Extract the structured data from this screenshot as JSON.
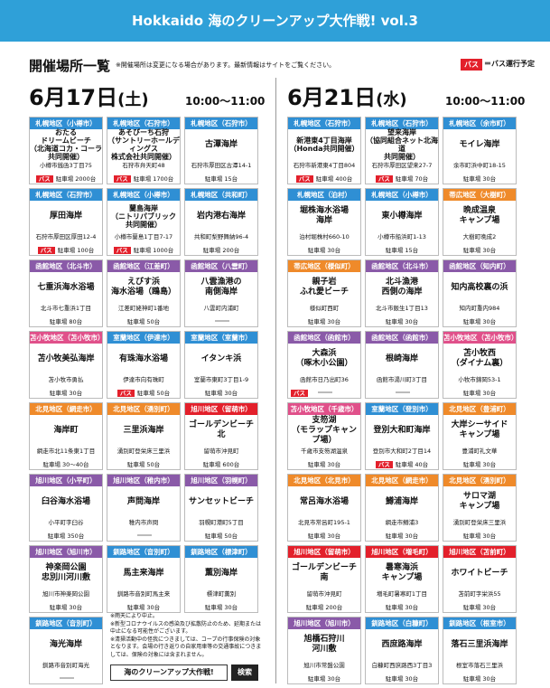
{
  "title": "Hokkaido 海のクリーンアップ大作戦! vol.3",
  "section_title": "開催場所一覧",
  "note": "※開催場所は変更になる場合があります。最新情報はサイトをご覧ください。",
  "bus_badge": "バス",
  "bus_legend": "＝バス運行予定",
  "dates": [
    {
      "date": "6月17日",
      "weekday": "(土)",
      "time": "10:00〜11:00"
    },
    {
      "date": "6月21日",
      "weekday": "(水)",
      "time": "10:00〜11:00"
    }
  ],
  "colors": {
    "blue": "#2f8fd4",
    "purple": "#8a5aa8",
    "pink": "#e0508a",
    "orange": "#ef8a2a",
    "red": "#e3202b",
    "banner": "#2fa0d8"
  },
  "cards_left": [
    {
      "region": "札幌地区（小樽市）",
      "color": "#2f8fd4",
      "name": "おたる\nドリームビーチ\n（北海道コカ・コーラ共同開催）",
      "address": "小樽市銭函3丁目75",
      "parking": "駐車場 2000台",
      "bus": true,
      "small": true
    },
    {
      "region": "札幌地区（石狩市）",
      "color": "#2f8fd4",
      "name": "あそびーち石狩\n（サントリーホールディングス\n株式会社共同開催）",
      "address": "石狩市弁天町48",
      "parking": "駐車場 1700台",
      "bus": true,
      "small": true
    },
    {
      "region": "札幌地区（石狩市）",
      "color": "#2f8fd4",
      "name": "古潭海岸",
      "address": "石狩市厚田区古潭14-1",
      "parking": "駐車場 15台",
      "bus": false
    },
    {
      "region": "札幌地区（石狩市）",
      "color": "#2f8fd4",
      "name": "厚田海岸",
      "address": "石狩市厚田区厚田12-4",
      "parking": "駐車場 100台",
      "bus": true
    },
    {
      "region": "札幌地区（小樽市）",
      "color": "#2f8fd4",
      "name": "蘭島海岸\n（ニトリパブリック\n共同開催）",
      "address": "小樽市蘭島1丁目7-17",
      "parking": "駐車場 1000台",
      "bus": true,
      "small": true
    },
    {
      "region": "札幌地区（共和町）",
      "color": "#2f8fd4",
      "name": "岩内港右海岸",
      "address": "共和町梨野舞納96-4",
      "parking": "駐車場 200台",
      "bus": false
    },
    {
      "region": "函館地区（北斗市）",
      "color": "#8a5aa8",
      "name": "七重浜海水浴場",
      "address": "北斗市七重浜1丁目",
      "parking": "駐車場 80台",
      "bus": false
    },
    {
      "region": "函館地区（江差町）",
      "color": "#8a5aa8",
      "name": "えびす浜\n海水浴場（鴎島）",
      "address": "江差町姥神町1番地",
      "parking": "駐車場 50台",
      "bus": false
    },
    {
      "region": "函館地区（八雲町）",
      "color": "#8a5aa8",
      "name": "八雲漁港の\n南側海岸",
      "address": "八雲町内浦町",
      "parking": "",
      "bus": false
    },
    {
      "region": "苫小牧地区（苫小牧市）",
      "color": "#e0508a",
      "name": "苫小牧美弘海岸",
      "address": "苫小牧市勇払",
      "parking": "駐車場 30台",
      "bus": false
    },
    {
      "region": "室蘭地区（伊達市）",
      "color": "#2f8fd4",
      "name": "有珠海水浴場",
      "address": "伊達市向有珠町",
      "parking": "駐車場 50台",
      "bus": true
    },
    {
      "region": "室蘭地区（室蘭市）",
      "color": "#2f8fd4",
      "name": "イタンキ浜",
      "address": "室蘭市東町3丁目1-9",
      "parking": "駐車場 30台",
      "bus": false
    },
    {
      "region": "北見地区（網走市）",
      "color": "#ef8a2a",
      "name": "海岸町",
      "address": "網走市北11条東1丁目",
      "parking": "駐車場 30〜40台",
      "bus": false
    },
    {
      "region": "北見地区（湧別町）",
      "color": "#ef8a2a",
      "name": "三里浜海岸",
      "address": "湧別町登栄床三里浜",
      "parking": "駐車場 50台",
      "bus": false
    },
    {
      "region": "旭川地区（留萌市）",
      "color": "#e3202b",
      "name": "ゴールデンビーチ北",
      "address": "留萌市沖見町",
      "parking": "駐車場 600台",
      "bus": false
    },
    {
      "region": "旭川地区（小平町）",
      "color": "#8a5aa8",
      "name": "臼谷海水浴場",
      "address": "小平町字臼谷",
      "parking": "駐車場 350台",
      "bus": false
    },
    {
      "region": "旭川地区（稚内市）",
      "color": "#8a5aa8",
      "name": "声問海岸",
      "address": "稚内市声問",
      "parking": "",
      "bus": false
    },
    {
      "region": "旭川地区（羽幌町）",
      "color": "#8a5aa8",
      "name": "サンセットビーチ",
      "address": "羽幌町港町5丁目",
      "parking": "駐車場 50台",
      "bus": false
    },
    {
      "region": "旭川地区（旭川市）",
      "color": "#8a5aa8",
      "name": "神楽岡公園\n忠別川河川敷",
      "address": "旭川市神楽岡公園",
      "parking": "駐車場 30台",
      "bus": false
    },
    {
      "region": "釧路地区（音別町）",
      "color": "#2f8fd4",
      "name": "馬主来海岸",
      "address": "釧路市音別町馬主来",
      "parking": "駐車場 30台",
      "bus": false
    },
    {
      "region": "釧路地区（標津町）",
      "color": "#2f8fd4",
      "name": "薫別海岸",
      "address": "標津町薫別",
      "parking": "駐車場 30台",
      "bus": false
    },
    {
      "region": "釧路地区（音別町）",
      "color": "#2f8fd4",
      "name": "海光海岸",
      "address": "釧路市音別町海光",
      "parking": "",
      "bus": false
    }
  ],
  "cards_right": [
    {
      "region": "札幌地区（石狩市）",
      "color": "#2f8fd4",
      "name": "新港東4丁目海岸\n（Honda共同開催）",
      "address": "石狩市新港東4丁目804",
      "parking": "駐車場 400台",
      "bus": true,
      "small": true
    },
    {
      "region": "札幌地区（石狩市）",
      "color": "#2f8fd4",
      "name": "望来海岸\n（協同組合ネット北海道\n共同開催）",
      "address": "石狩市厚田区望来27-7",
      "parking": "駐車場 70台",
      "bus": true,
      "small": true
    },
    {
      "region": "札幌地区（余市町）",
      "color": "#2f8fd4",
      "name": "モイレ海岸",
      "address": "余市町浜中町18-15",
      "parking": "駐車場 30台",
      "bus": false
    },
    {
      "region": "札幌地区（泊村）",
      "color": "#2f8fd4",
      "name": "堀株海水浴場\n海岸",
      "address": "泊村堀株村660-10",
      "parking": "駐車場 30台",
      "bus": false
    },
    {
      "region": "札幌地区（小樽市）",
      "color": "#2f8fd4",
      "name": "東小樽海岸",
      "address": "小樽市船浜町1-13",
      "parking": "駐車場 15台",
      "bus": false
    },
    {
      "region": "帯広地区（大樹町）",
      "color": "#ef8a2a",
      "name": "晩成温泉\nキャンプ場",
      "address": "大樹町晩成2",
      "parking": "駐車場 30台",
      "bus": false
    },
    {
      "region": "帯広地区（様似町）",
      "color": "#ef8a2a",
      "name": "親子岩\nふれ愛ビーチ",
      "address": "様似町西町",
      "parking": "駐車場 30台",
      "bus": false
    },
    {
      "region": "函館地区（北斗市）",
      "color": "#8a5aa8",
      "name": "北斗漁港\n西側の海岸",
      "address": "北斗市飯生1丁目13",
      "parking": "駐車場 30台",
      "bus": false
    },
    {
      "region": "函館地区（知内町）",
      "color": "#8a5aa8",
      "name": "知内高校裏の浜",
      "address": "知内町重内984",
      "parking": "駐車場 30台",
      "bus": false
    },
    {
      "region": "函館地区（函館市）",
      "color": "#8a5aa8",
      "name": "大森浜\n（啄木小公園）",
      "address": "函館市日乃出町36",
      "parking": "",
      "bus": true
    },
    {
      "region": "函館地区（函館市）",
      "color": "#8a5aa8",
      "name": "根崎海岸",
      "address": "函館市湯川町3丁目",
      "parking": "",
      "bus": false
    },
    {
      "region": "苫小牧地区（苫小牧市）",
      "color": "#e0508a",
      "name": "苫小牧西\n（ダイナム裏）",
      "address": "小牧市錦岡53-1",
      "parking": "駐車場 30台",
      "bus": false
    },
    {
      "region": "苫小牧地区（千歳市）",
      "color": "#e0508a",
      "name": "支笏湖\n（モラップキャンプ場）",
      "address": "千歳市支笏湖温泉",
      "parking": "駐車場 30台",
      "bus": false
    },
    {
      "region": "室蘭地区（登別市）",
      "color": "#2f8fd4",
      "name": "登別大和町海岸",
      "address": "登別市大和町2丁目14",
      "parking": "駐車場 40台",
      "bus": true
    },
    {
      "region": "北見地区（豊浦町）",
      "color": "#ef8a2a",
      "name": "大岸シーサイド\nキャンプ場",
      "address": "豊浦町礼文華",
      "parking": "駐車場 30台",
      "bus": false
    },
    {
      "region": "北見地区（北見市）",
      "color": "#ef8a2a",
      "name": "常呂海水浴場",
      "address": "北見市常呂町195-1",
      "parking": "駐車場 30台",
      "bus": false
    },
    {
      "region": "北見地区（網走市）",
      "color": "#ef8a2a",
      "name": "鱒浦海岸",
      "address": "網走市鱒浦3",
      "parking": "駐車場 30台",
      "bus": false
    },
    {
      "region": "北見地区（湧別町）",
      "color": "#ef8a2a",
      "name": "サロマ湖\nキャンプ場",
      "address": "湧別町登栄床三里浜",
      "parking": "駐車場 30台",
      "bus": false
    },
    {
      "region": "旭川地区（留萌市）",
      "color": "#e3202b",
      "name": "ゴールデンビーチ南",
      "address": "留萌市沖見町",
      "parking": "駐車場 200台",
      "bus": false
    },
    {
      "region": "旭川地区（増毛町）",
      "color": "#e3202b",
      "name": "暑寒海浜\nキャンプ場",
      "address": "増毛町暑寒町1丁目",
      "parking": "駐車場 30台",
      "bus": false
    },
    {
      "region": "旭川地区（苫前町）",
      "color": "#e3202b",
      "name": "ホワイトビーチ",
      "address": "苫前町字栄浜55",
      "parking": "駐車場 30台",
      "bus": false
    },
    {
      "region": "旭川地区（旭川市）",
      "color": "#8a5aa8",
      "name": "旭橋石狩川\n河川敷",
      "address": "旭川市常盤公園",
      "parking": "駐車場 30台",
      "bus": false
    },
    {
      "region": "釧路地区（白糠町）",
      "color": "#2f8fd4",
      "name": "西庶路海岸",
      "address": "白糠町西庶路西3丁目3",
      "parking": "駐車場 30台",
      "bus": false
    },
    {
      "region": "釧路地区（根室市）",
      "color": "#2f8fd4",
      "name": "落石三里浜海岸",
      "address": "根室市落石三里浜",
      "parking": "駐車場 30台",
      "bus": false
    }
  ],
  "notes": "※雨天により中止。\n※新型コロナウイルスの感染及び拡散防止のため、延期または中止になる可能性がございます。\n※清掃活動中の怪我につきましては、コープの行事保険の対象となります。会場の行き返りの自家用車等の交通事故につきましては、保険の対象には含まれません。",
  "footer_search": "海のクリーンアップ大作戦!",
  "footer_button": "検索"
}
